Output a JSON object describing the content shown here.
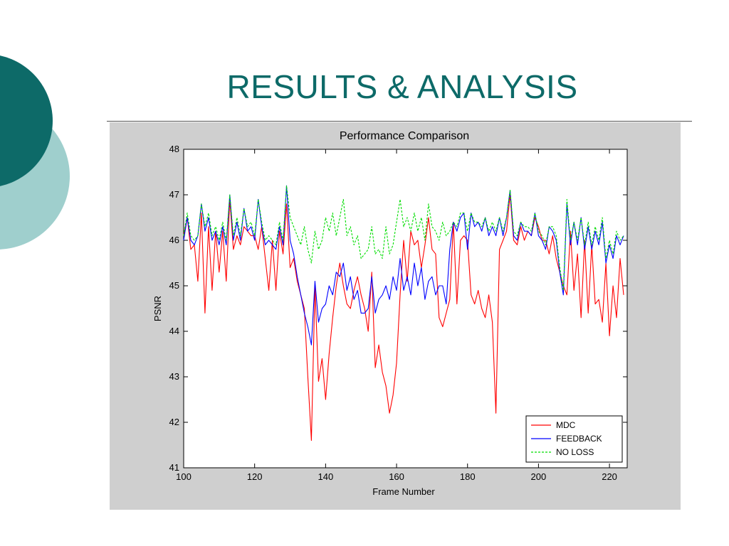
{
  "slide": {
    "title": "RESULTS  &  ANALYSIS"
  },
  "colors": {
    "title": "#0d6a68",
    "circle_dark": "#0d6a68",
    "circle_light": "#9fcfcd",
    "figure_background": "#cfcfcf",
    "mdc": "#ff0000",
    "feedback": "#0000ff",
    "no_loss": "#00dd00"
  },
  "chart_data": {
    "type": "line",
    "title": "Performance Comparison",
    "xlabel": "Frame Number",
    "ylabel": "PSNR",
    "xlim": [
      100,
      225
    ],
    "ylim": [
      41,
      48
    ],
    "xticks": [
      "100",
      "120",
      "140",
      "160",
      "180",
      "200",
      "220"
    ],
    "yticks": [
      "41",
      "42",
      "43",
      "44",
      "45",
      "46",
      "47",
      "48"
    ],
    "grid": false,
    "legend": "bottom-right",
    "x": [
      100,
      101,
      102,
      103,
      104,
      105,
      106,
      107,
      108,
      109,
      110,
      111,
      112,
      113,
      114,
      115,
      116,
      117,
      118,
      119,
      120,
      121,
      122,
      123,
      124,
      125,
      126,
      127,
      128,
      129,
      130,
      131,
      132,
      133,
      134,
      135,
      136,
      137,
      138,
      139,
      140,
      141,
      142,
      143,
      144,
      145,
      146,
      147,
      148,
      149,
      150,
      151,
      152,
      153,
      154,
      155,
      156,
      157,
      158,
      159,
      160,
      161,
      162,
      163,
      164,
      165,
      166,
      167,
      168,
      169,
      170,
      171,
      172,
      173,
      174,
      175,
      176,
      177,
      178,
      179,
      180,
      181,
      182,
      183,
      184,
      185,
      186,
      187,
      188,
      189,
      190,
      191,
      192,
      193,
      194,
      195,
      196,
      197,
      198,
      199,
      200,
      201,
      202,
      203,
      204,
      205,
      206,
      207,
      208,
      209,
      210,
      211,
      212,
      213,
      214,
      215,
      216,
      217,
      218,
      219,
      220,
      221,
      222,
      223,
      224
    ],
    "series": [
      {
        "name": "MDC",
        "style": "solid",
        "color": "#ff0000",
        "values": [
          46.1,
          46.5,
          45.8,
          45.9,
          45.1,
          46.6,
          44.4,
          46.3,
          44.9,
          46.2,
          45.3,
          46.2,
          45.1,
          46.9,
          45.8,
          46.1,
          45.9,
          46.3,
          46.2,
          46.1,
          46.1,
          45.8,
          46.3,
          45.6,
          44.9,
          46.0,
          44.9,
          46.2,
          45.7,
          46.8,
          45.4,
          45.6,
          45.1,
          44.8,
          44.5,
          43.0,
          41.6,
          45.0,
          42.9,
          43.4,
          42.5,
          43.5,
          44.3,
          45.0,
          45.5,
          45.0,
          44.6,
          44.5,
          44.9,
          45.2,
          44.8,
          44.5,
          44.0,
          45.3,
          43.2,
          43.7,
          43.1,
          42.8,
          42.2,
          42.6,
          43.3,
          44.8,
          46.0,
          45.1,
          46.2,
          45.9,
          46.0,
          45.4,
          45.9,
          46.5,
          45.8,
          45.7,
          44.3,
          44.1,
          44.4,
          44.7,
          46.4,
          44.6,
          46.0,
          46.1,
          46.0,
          44.8,
          44.6,
          44.9,
          44.5,
          44.3,
          44.8,
          44.2,
          42.2,
          45.8,
          46.0,
          46.2,
          47.0,
          46.0,
          45.9,
          46.3,
          46.0,
          46.2,
          46.1,
          46.5,
          46.3,
          46.0,
          46.0,
          45.7,
          46.1,
          45.6,
          45.3,
          45.0,
          44.8,
          46.2,
          44.9,
          45.7,
          44.3,
          46.0,
          44.4,
          45.9,
          44.6,
          44.7,
          44.2,
          45.5,
          43.9,
          45.0,
          44.3,
          45.6,
          44.8
        ]
      },
      {
        "name": "FEEDBACK",
        "style": "solid",
        "color": "#0000ff",
        "values": [
          46.0,
          46.5,
          46.0,
          45.9,
          46.1,
          46.8,
          46.2,
          46.5,
          46.0,
          46.2,
          45.9,
          46.3,
          45.9,
          47.0,
          46.0,
          46.4,
          46.0,
          46.7,
          46.2,
          46.3,
          46.0,
          46.9,
          46.3,
          45.9,
          46.0,
          45.9,
          45.8,
          46.3,
          45.9,
          47.2,
          46.0,
          45.7,
          45.2,
          44.8,
          44.4,
          44.1,
          43.7,
          45.1,
          44.2,
          44.5,
          44.6,
          45.0,
          44.8,
          45.3,
          45.2,
          45.5,
          44.9,
          45.2,
          44.7,
          44.9,
          44.4,
          44.4,
          44.5,
          45.2,
          44.4,
          44.7,
          44.8,
          45.0,
          44.7,
          45.2,
          44.9,
          45.6,
          44.9,
          45.2,
          44.8,
          45.5,
          45.0,
          45.4,
          44.7,
          45.1,
          45.2,
          44.8,
          45.0,
          45.0,
          44.6,
          45.8,
          46.4,
          46.2,
          46.5,
          46.6,
          45.8,
          46.6,
          46.3,
          46.4,
          46.2,
          46.5,
          46.1,
          46.3,
          46.1,
          46.5,
          46.1,
          46.5,
          47.1,
          46.1,
          46.0,
          46.4,
          46.2,
          46.2,
          46.1,
          46.6,
          46.1,
          46.0,
          45.8,
          46.3,
          46.2,
          46.0,
          45.3,
          44.8,
          46.8,
          45.9,
          46.4,
          45.9,
          46.5,
          45.8,
          46.3,
          45.8,
          46.2,
          45.9,
          46.4,
          45.5,
          45.9,
          45.6,
          46.1,
          45.9,
          46.1
        ]
      },
      {
        "name": "NO LOSS",
        "style": "dashed",
        "color": "#00dd00",
        "values": [
          46.1,
          46.6,
          46.1,
          46.0,
          46.1,
          46.8,
          46.3,
          46.6,
          46.1,
          46.3,
          46.0,
          46.4,
          46.0,
          47.0,
          46.1,
          46.5,
          46.1,
          46.7,
          46.3,
          46.4,
          46.1,
          46.9,
          46.4,
          46.0,
          46.1,
          46.0,
          45.9,
          46.4,
          46.0,
          47.2,
          46.5,
          46.3,
          46.1,
          45.9,
          46.3,
          45.8,
          45.5,
          46.2,
          45.8,
          46.0,
          46.5,
          46.2,
          46.6,
          46.1,
          46.5,
          46.9,
          46.1,
          46.3,
          45.9,
          46.1,
          45.6,
          45.7,
          45.8,
          46.3,
          45.7,
          45.8,
          45.6,
          46.3,
          45.7,
          45.9,
          46.4,
          46.9,
          46.3,
          46.5,
          46.2,
          46.6,
          46.2,
          46.5,
          46.0,
          46.8,
          46.3,
          46.2,
          46.0,
          46.4,
          46.1,
          46.2,
          46.4,
          46.3,
          46.6,
          46.6,
          46.2,
          46.6,
          46.4,
          46.4,
          46.3,
          46.5,
          46.2,
          46.4,
          46.2,
          46.5,
          46.2,
          46.5,
          47.1,
          46.2,
          46.1,
          46.4,
          46.3,
          46.3,
          46.2,
          46.6,
          46.2,
          46.1,
          45.9,
          46.3,
          46.3,
          46.1,
          45.4,
          44.9,
          46.9,
          46.0,
          46.4,
          46.0,
          46.5,
          45.9,
          46.4,
          45.9,
          46.3,
          46.0,
          46.5,
          45.6,
          46.0,
          45.7,
          46.2,
          46.0,
          46.1
        ]
      }
    ]
  }
}
